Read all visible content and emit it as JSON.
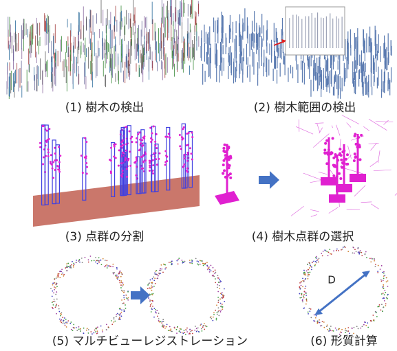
{
  "panels": [
    {
      "caption": "(1) 樹木の検出"
    },
    {
      "caption": "(2) 樹木範囲の検出"
    },
    {
      "caption": "(3) 点群の分割"
    },
    {
      "caption": "(4) 樹木点群の選択"
    },
    {
      "caption": "(5) マルチビューレジストレーション"
    },
    {
      "caption": "(6) 形質計算"
    }
  ],
  "annotation": "D"
}
